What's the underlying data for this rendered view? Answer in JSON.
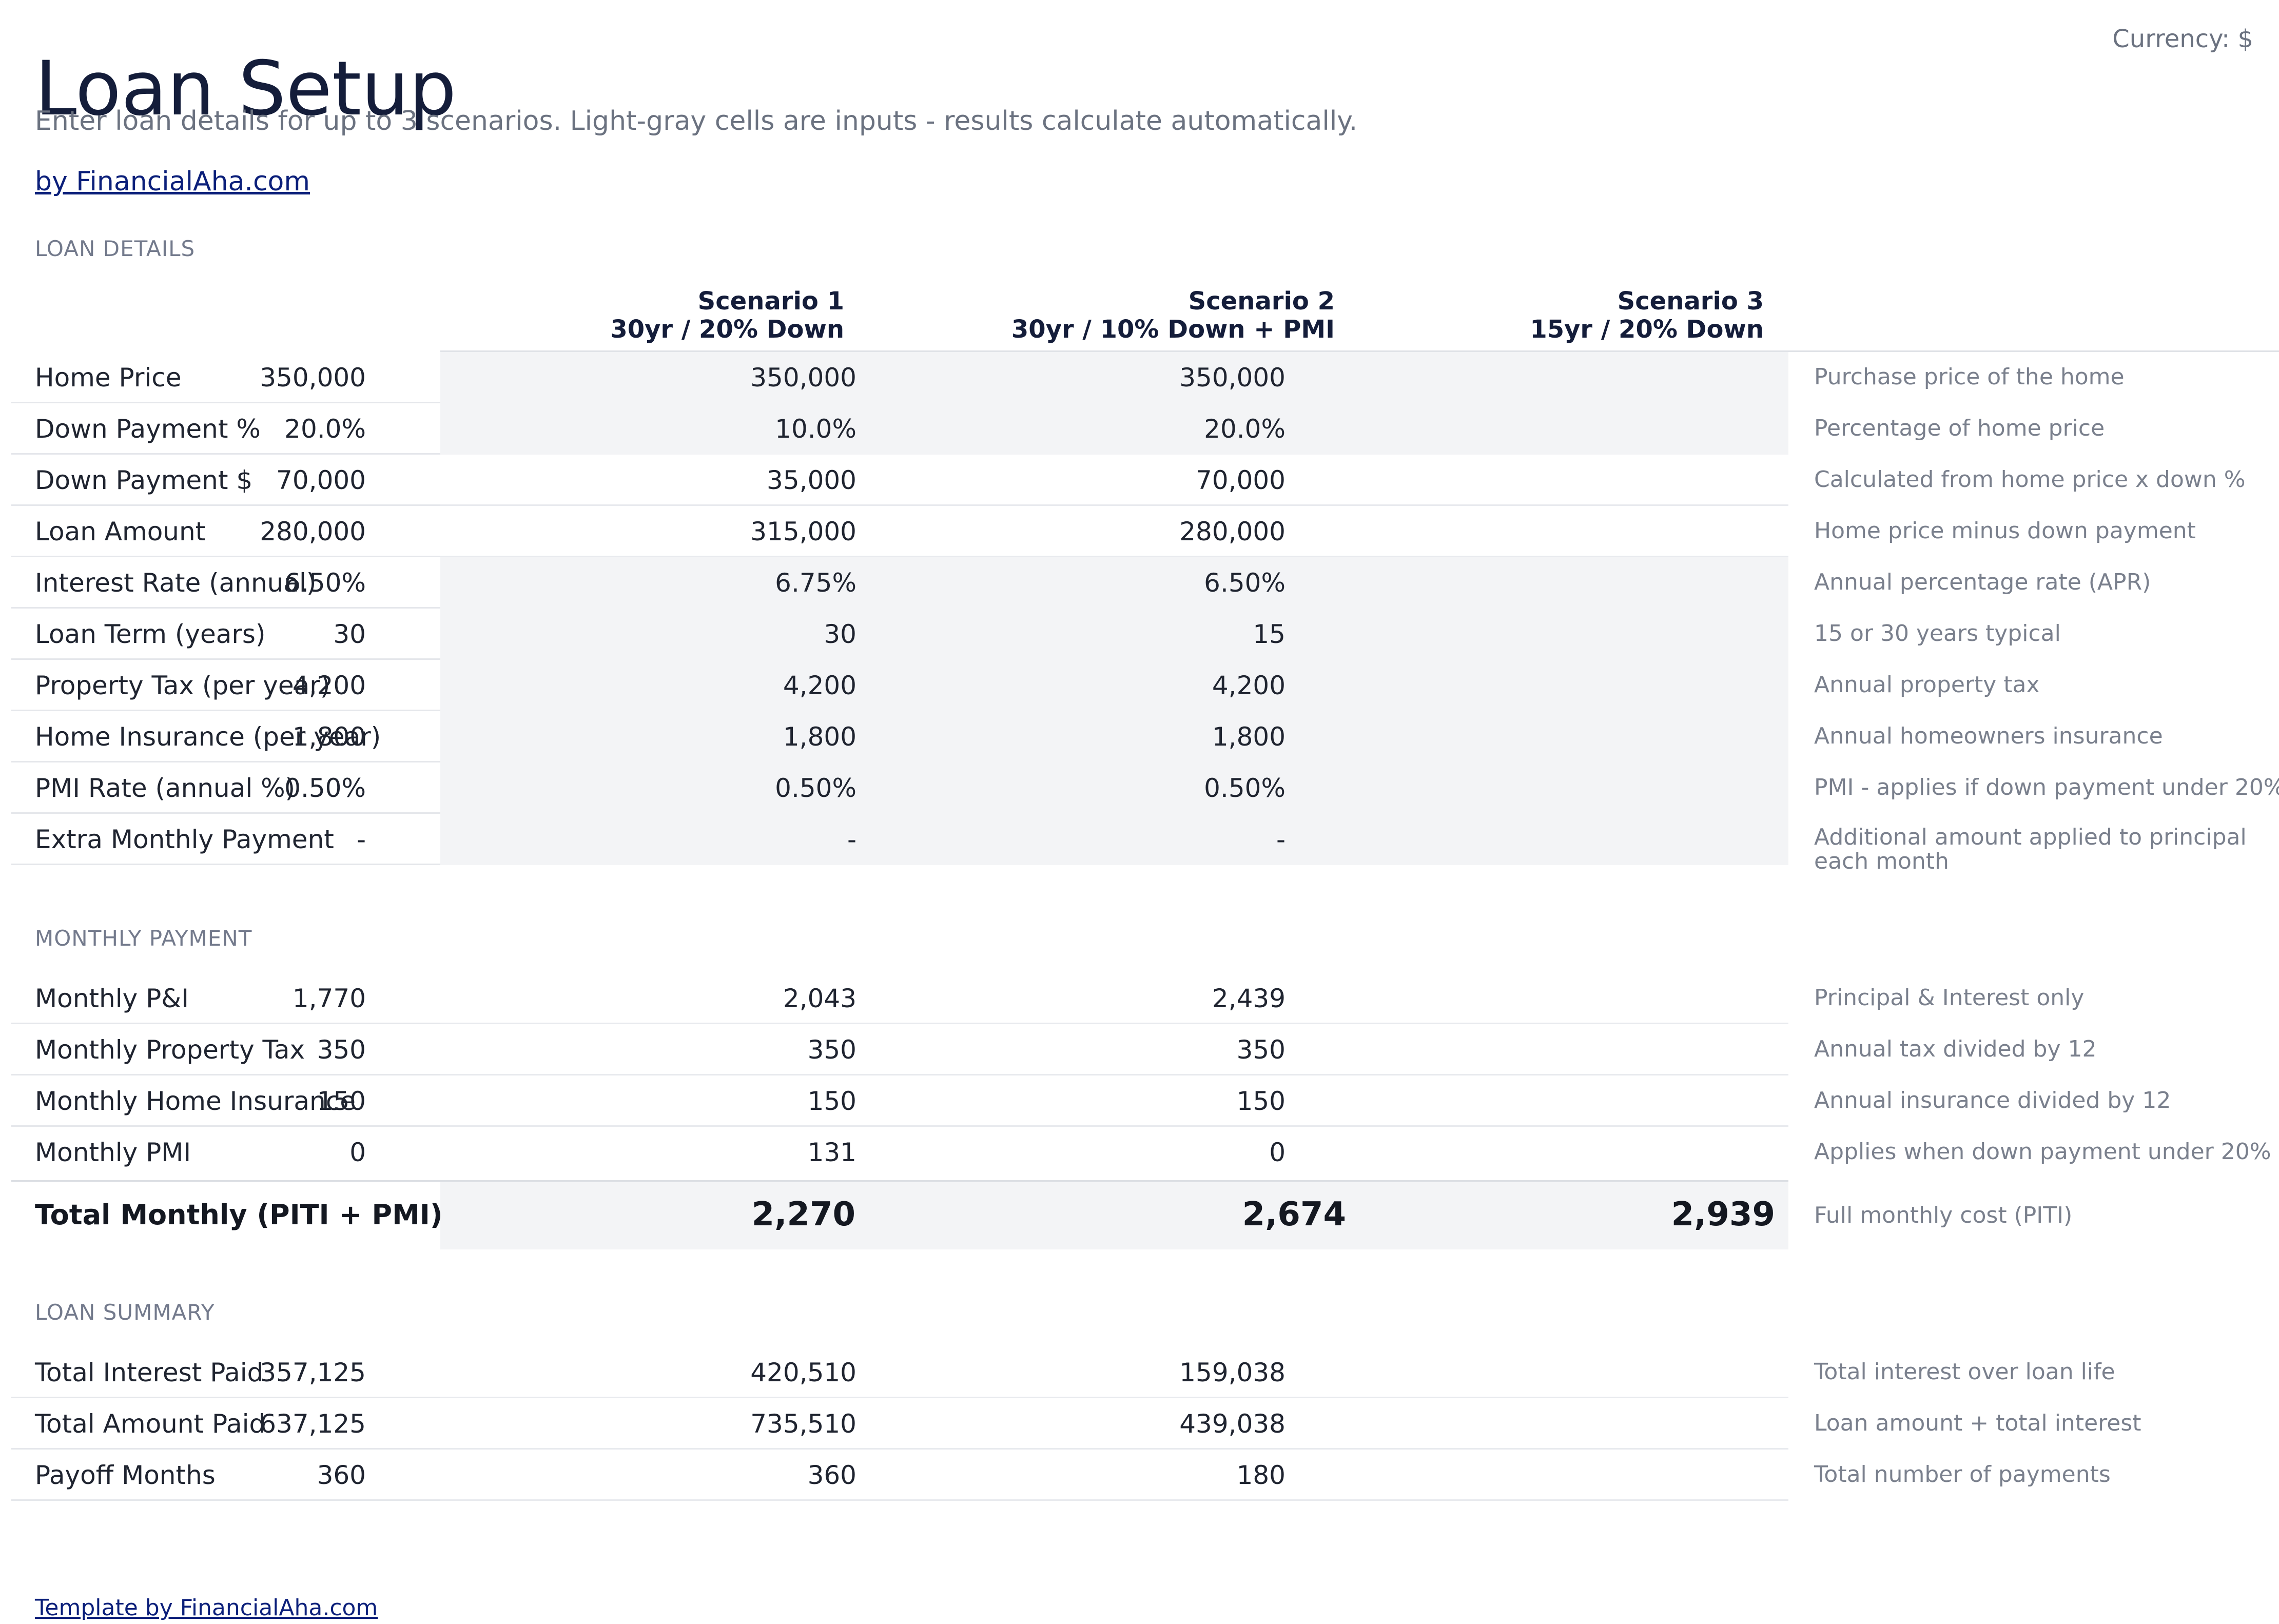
{
  "header": {
    "title": "Loan Setup",
    "currency": "Currency: $",
    "subtitle": "Enter loan details for up to 3 scenarios. Light-gray cells are inputs - results calculate automatically.",
    "byline": "by FinancialAha.com"
  },
  "sections": {
    "loan_details": "LOAN DETAILS",
    "monthly_payment": "MONTHLY PAYMENT",
    "loan_summary": "LOAN SUMMARY"
  },
  "scenarios": [
    {
      "name": "Scenario 1",
      "desc": "30yr / 20% Down"
    },
    {
      "name": "Scenario 2",
      "desc": "30yr / 10% Down + PMI"
    },
    {
      "name": "Scenario 3",
      "desc": "15yr / 20% Down"
    }
  ],
  "loan_details": [
    {
      "label": "Home Price",
      "values": [
        "350,000",
        "350,000",
        "350,000"
      ],
      "note": "Purchase price of the home",
      "input": true
    },
    {
      "label": "Down Payment %",
      "values": [
        "20.0%",
        "10.0%",
        "20.0%"
      ],
      "note": "Percentage of home price",
      "input": true
    },
    {
      "label": "Down Payment $",
      "values": [
        "70,000",
        "35,000",
        "70,000"
      ],
      "note": "Calculated from home price x down %",
      "input": false
    },
    {
      "label": "Loan Amount",
      "values": [
        "280,000",
        "315,000",
        "280,000"
      ],
      "note": "Home price minus down payment",
      "input": false
    },
    {
      "label": "Interest Rate (annual)",
      "values": [
        "6.50%",
        "6.75%",
        "6.50%"
      ],
      "note": "Annual percentage rate (APR)",
      "input": true
    },
    {
      "label": "Loan Term (years)",
      "values": [
        "30",
        "30",
        "15"
      ],
      "note": "15 or 30 years typical",
      "input": true
    },
    {
      "label": "Property Tax (per year)",
      "values": [
        "4,200",
        "4,200",
        "4,200"
      ],
      "note": "Annual property tax",
      "input": true
    },
    {
      "label": "Home Insurance (per year)",
      "values": [
        "1,800",
        "1,800",
        "1,800"
      ],
      "note": "Annual homeowners insurance",
      "input": true
    },
    {
      "label": "PMI Rate (annual %)",
      "values": [
        "0.50%",
        "0.50%",
        "0.50%"
      ],
      "note": "PMI - applies if down payment under 20%",
      "input": true
    },
    {
      "label": "Extra Monthly Payment",
      "values": [
        "-",
        "-",
        "-"
      ],
      "note": "Additional amount applied to principal",
      "note2": "each month",
      "input": true
    }
  ],
  "monthly_payment": [
    {
      "label": "Monthly P&I",
      "values": [
        "1,770",
        "2,043",
        "2,439"
      ],
      "note": "Principal & Interest only"
    },
    {
      "label": "Monthly Property Tax",
      "values": [
        "350",
        "350",
        "350"
      ],
      "note": "Annual tax divided by 12"
    },
    {
      "label": "Monthly Home Insurance",
      "values": [
        "150",
        "150",
        "150"
      ],
      "note": "Annual insurance divided by 12"
    },
    {
      "label": "Monthly PMI",
      "values": [
        "0",
        "131",
        "0"
      ],
      "note": "Applies when down payment under 20%"
    }
  ],
  "total": {
    "label": "Total Monthly (PITI + PMI)",
    "values": [
      "2,270",
      "2,674",
      "2,939"
    ],
    "note": "Full monthly cost (PITI)"
  },
  "loan_summary": [
    {
      "label": "Total Interest Paid",
      "values": [
        "357,125",
        "420,510",
        "159,038"
      ],
      "note": "Total interest over loan life"
    },
    {
      "label": "Total Amount Paid",
      "values": [
        "637,125",
        "735,510",
        "439,038"
      ],
      "note": "Loan amount + total interest"
    },
    {
      "label": "Payoff Months",
      "values": [
        "360",
        "360",
        "180"
      ],
      "note": "Total number of payments"
    }
  ],
  "footer": {
    "link": "Template by FinancialAha.com"
  }
}
